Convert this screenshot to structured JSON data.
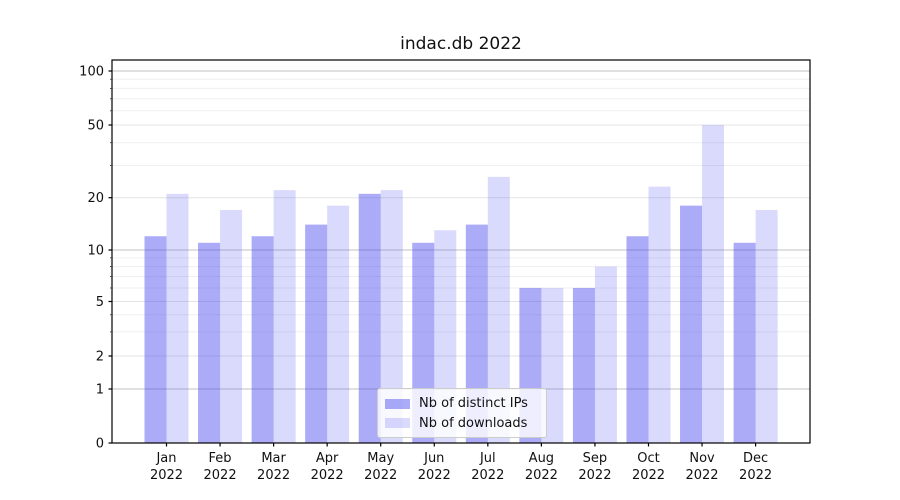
{
  "chart_data": {
    "type": "bar",
    "title": "indac.db 2022",
    "months": [
      "Jan",
      "Feb",
      "Mar",
      "Apr",
      "May",
      "Jun",
      "Jul",
      "Aug",
      "Sep",
      "Oct",
      "Nov",
      "Dec"
    ],
    "year": "2022",
    "series": [
      {
        "name": "Nb of distinct IPs",
        "color": "rgba(68,68,238,0.45)",
        "values": [
          12,
          11,
          12,
          14,
          21,
          11,
          14,
          6,
          6,
          12,
          18,
          11
        ]
      },
      {
        "name": "Nb of downloads",
        "color": "rgba(68,68,238,0.2)",
        "values": [
          21,
          17,
          22,
          18,
          22,
          13,
          26,
          6,
          8,
          23,
          50,
          17
        ]
      }
    ],
    "yscale": "symlog",
    "ylim": [
      0,
      100
    ],
    "yticks": [
      100,
      50,
      20,
      10,
      5,
      2,
      1,
      0
    ],
    "yticks_minor": [
      90,
      80,
      70,
      60,
      40,
      30,
      9,
      8,
      7,
      6,
      4,
      3
    ],
    "grid": true,
    "legend": {
      "position": "lower center"
    }
  }
}
